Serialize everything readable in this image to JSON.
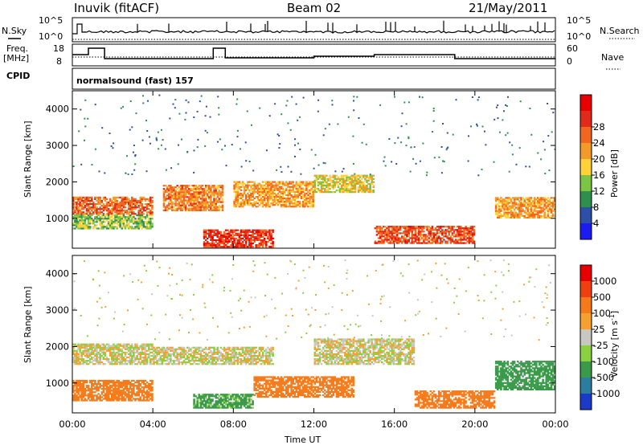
{
  "header": {
    "station": "Inuvik (fitACF)",
    "beam": "Beam 02",
    "date": "21/May/2011"
  },
  "panels": {
    "nsky": {
      "left_label": "N.Sky",
      "right_label": "N.Search",
      "left_ticks": [
        "10^5",
        "10^0"
      ],
      "right_ticks": [
        "10^5",
        "10^0"
      ]
    },
    "freq": {
      "left_label_1": "Freq.",
      "left_label_2": "[MHz]",
      "right_label": "Nave",
      "left_ticks": [
        "18",
        "8"
      ],
      "right_ticks": [
        "60",
        "0"
      ]
    },
    "cpid": {
      "label": "CPID",
      "program": "normalsound (fast) 157"
    }
  },
  "chart_data": [
    {
      "type": "heatmap",
      "title": "",
      "xlabel": "Time UT",
      "ylabel": "Slant Range [km]",
      "x_ticks": [
        "00:00",
        "04:00",
        "08:00",
        "12:00",
        "16:00",
        "20:00",
        "00:00"
      ],
      "y_ticks": [
        1000,
        2000,
        3000,
        4000
      ],
      "xlim_hours": [
        0,
        24
      ],
      "ylim_km": [
        180,
        4500
      ],
      "colorbar": {
        "label": "Power [dB]",
        "ticks": [
          "4",
          "8",
          "12",
          "16",
          "20",
          "24",
          "28"
        ],
        "colors": [
          "#1c1cf0",
          "#2e4fa8",
          "#2f8f4f",
          "#7cc443",
          "#ffd23a",
          "#f29a2a",
          "#f2661f",
          "#e02a1a",
          "#e80000"
        ]
      },
      "bands": [
        {
          "t0": 0,
          "t1": 4,
          "r0": 1100,
          "r1": 1600,
          "value": 26
        },
        {
          "t0": 0,
          "t1": 4,
          "r0": 700,
          "r1": 1100,
          "value": 14
        },
        {
          "t0": 4.5,
          "t1": 7.5,
          "r0": 1200,
          "r1": 1900,
          "value": 24
        },
        {
          "t0": 6.5,
          "t1": 10,
          "r0": 200,
          "r1": 700,
          "value": 30
        },
        {
          "t0": 8,
          "t1": 12,
          "r0": 1300,
          "r1": 2000,
          "value": 22
        },
        {
          "t0": 12,
          "t1": 15,
          "r0": 1700,
          "r1": 2200,
          "value": 18
        },
        {
          "t0": 15,
          "t1": 20,
          "r0": 300,
          "r1": 800,
          "value": 28
        },
        {
          "t0": 21,
          "t1": 24,
          "r0": 1000,
          "r1": 1600,
          "value": 22
        }
      ]
    },
    {
      "type": "heatmap",
      "title": "",
      "xlabel": "Time UT",
      "ylabel": "Slant Range [km]",
      "x_ticks": [
        "00:00",
        "04:00",
        "08:00",
        "12:00",
        "16:00",
        "20:00",
        "00:00"
      ],
      "y_ticks": [
        1000,
        2000,
        3000,
        4000
      ],
      "xlim_hours": [
        0,
        24
      ],
      "ylim_km": [
        180,
        4500
      ],
      "colorbar": {
        "label": "Velocity [m s^-1]",
        "ticks": [
          "1000",
          "500",
          "100",
          "25",
          "-25",
          "-100",
          "-500",
          "-1000"
        ],
        "colors": [
          "#1c3ac8",
          "#2d7d9e",
          "#3a9a4a",
          "#8ad040",
          "#c8c8c0",
          "#f5a030",
          "#f57a1a",
          "#f04010",
          "#e80000"
        ]
      },
      "bands": [
        {
          "t0": 0,
          "t1": 4,
          "r0": 1500,
          "r1": 2100,
          "value": 0
        },
        {
          "t0": 0,
          "t1": 4,
          "r0": 500,
          "r1": 1100,
          "value": -300
        },
        {
          "t0": 4,
          "t1": 10,
          "r0": 1500,
          "r1": 2000,
          "value": 0
        },
        {
          "t0": 6,
          "t1": 9,
          "r0": 300,
          "r1": 700,
          "value": 150
        },
        {
          "t0": 9,
          "t1": 14,
          "r0": 600,
          "r1": 1200,
          "value": -300
        },
        {
          "t0": 12,
          "t1": 17,
          "r0": 1500,
          "r1": 2200,
          "value": 0
        },
        {
          "t0": 17,
          "t1": 21,
          "r0": 300,
          "r1": 800,
          "value": -300
        },
        {
          "t0": 21,
          "t1": 24,
          "r0": 800,
          "r1": 1600,
          "value": 200
        }
      ]
    }
  ]
}
